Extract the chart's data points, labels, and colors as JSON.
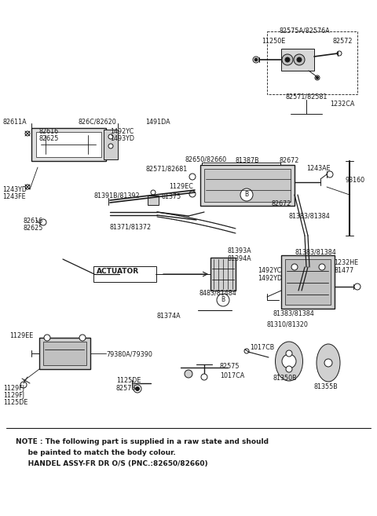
{
  "bg_color": "#ffffff",
  "fig_width": 4.8,
  "fig_height": 6.57,
  "dpi": 100,
  "note_line1": "NOTE : The following part is supplied in a raw state and should",
  "note_line2": "     be painted to match the body colour.",
  "note_line3": "     HANDEL ASSY-FR DR O/S (PNC.:82650/82660)"
}
